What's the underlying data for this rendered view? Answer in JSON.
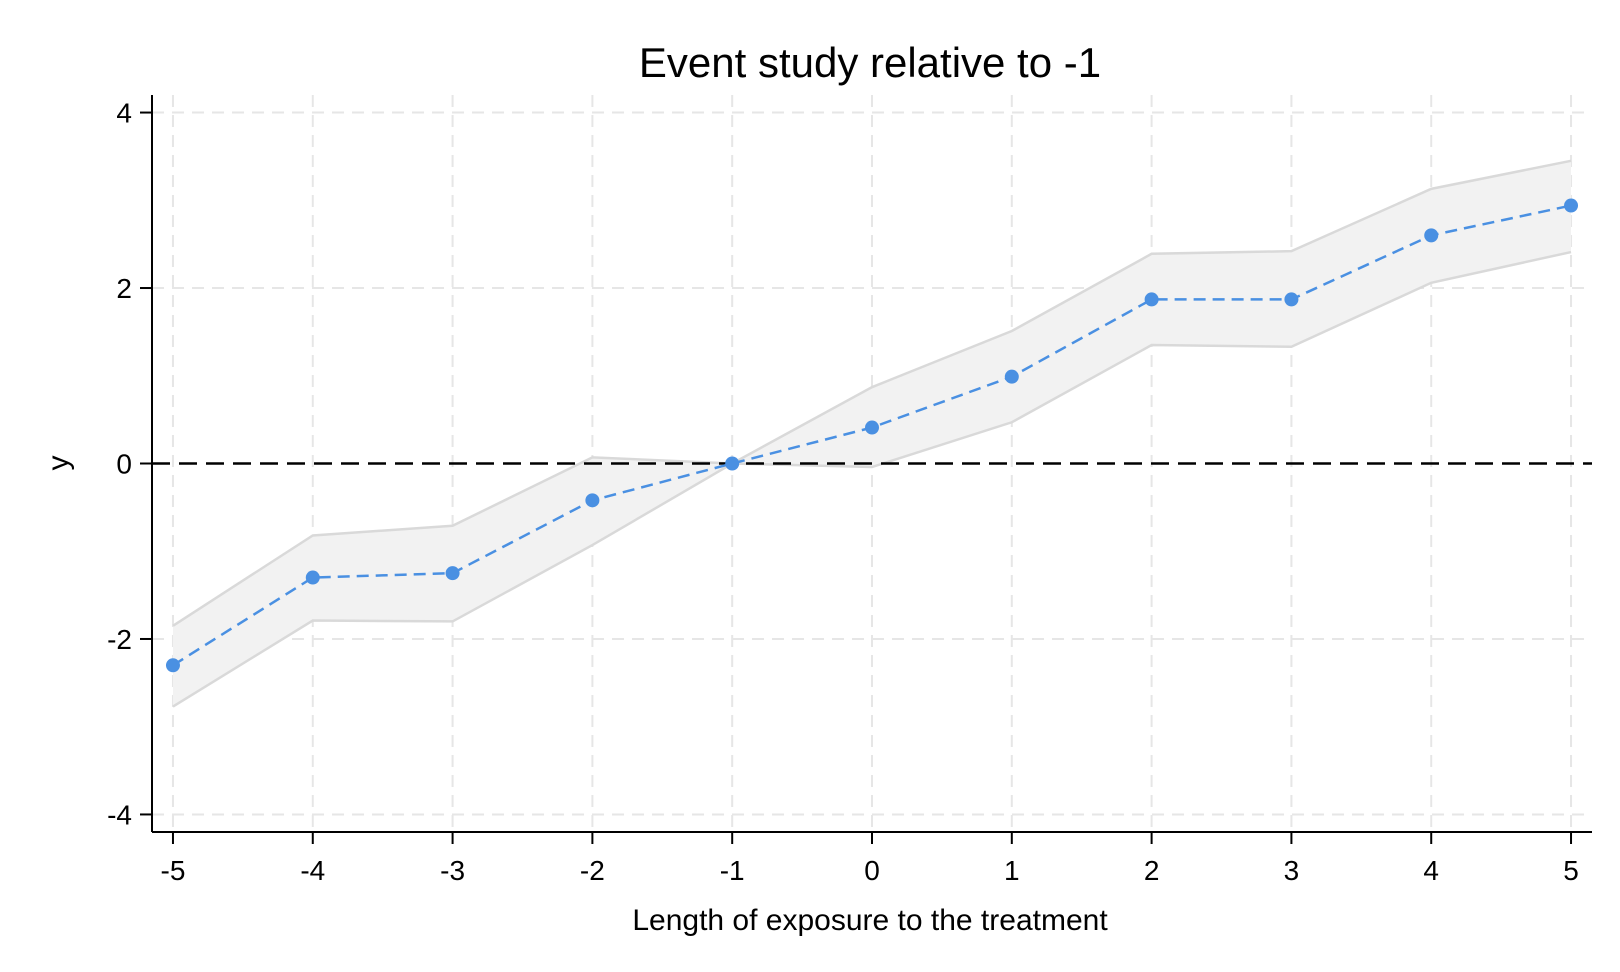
{
  "chart_data": {
    "type": "line",
    "title": "Event study relative to -1",
    "xlabel": "Length of exposure to the treatment",
    "ylabel": "y",
    "xlim": [
      -5.15,
      5.15
    ],
    "ylim": [
      -4.2,
      4.2
    ],
    "xticks": [
      -5,
      -4,
      -3,
      -2,
      -1,
      0,
      1,
      2,
      3,
      4,
      5
    ],
    "xtick_labels": [
      "-5",
      "-4",
      "-3",
      "-2",
      "-1",
      "0",
      "1",
      "2",
      "3",
      "4",
      "5"
    ],
    "yticks": [
      -4,
      -2,
      0,
      2,
      4
    ],
    "ytick_labels": [
      "-4",
      "-2",
      "0",
      "2",
      "4"
    ],
    "grid": true,
    "reference_line_y": 0,
    "x": [
      -5,
      -4,
      -3,
      -2,
      -1,
      0,
      1,
      2,
      3,
      4,
      5
    ],
    "estimate": [
      -2.3,
      -1.3,
      -1.25,
      -0.42,
      0,
      0.41,
      0.99,
      1.87,
      1.87,
      2.6,
      2.94
    ],
    "ci_lower": [
      -2.77,
      -1.79,
      -1.8,
      -0.93,
      0,
      -0.04,
      0.47,
      1.35,
      1.33,
      2.06,
      2.41
    ],
    "ci_upper": [
      -1.85,
      -0.82,
      -0.71,
      0.07,
      0,
      0.87,
      1.51,
      2.39,
      2.42,
      3.13,
      3.45
    ],
    "colors": {
      "estimate": "#4a90e2",
      "ci_fill": "#f2f2f2",
      "ci_edge": "#d9d9d9",
      "grid": "#e6e6e6",
      "reference_line": "#000000"
    }
  }
}
